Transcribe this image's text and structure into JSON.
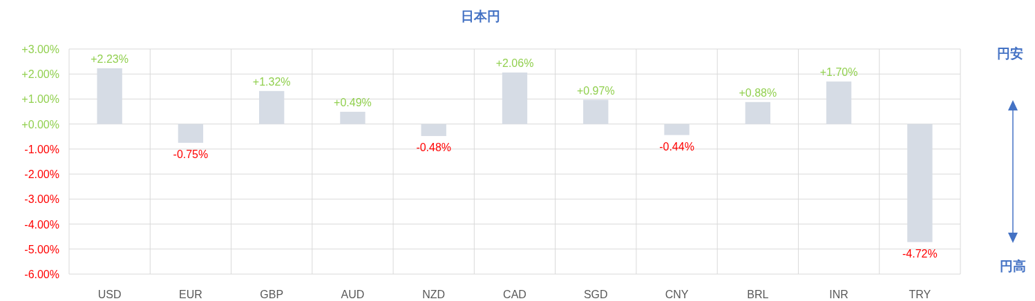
{
  "chart_data": {
    "type": "bar",
    "title": "日本円",
    "categories": [
      "USD",
      "EUR",
      "GBP",
      "AUD",
      "NZD",
      "CAD",
      "SGD",
      "CNY",
      "BRL",
      "INR",
      "TRY"
    ],
    "values": [
      2.23,
      -0.75,
      1.32,
      0.49,
      -0.48,
      2.06,
      0.97,
      -0.44,
      0.88,
      1.7,
      -4.72
    ],
    "value_labels": [
      "+2.23%",
      "-0.75%",
      "+1.32%",
      "+0.49%",
      "-0.48%",
      "+2.06%",
      "+0.97%",
      "-0.44%",
      "+0.88%",
      "+1.70%",
      "-4.72%"
    ],
    "color": "#d6dce5",
    "ylim": [
      -6,
      3
    ],
    "yticks": [
      {
        "value": 3,
        "label": "+3.00%"
      },
      {
        "value": 2,
        "label": "+2.00%"
      },
      {
        "value": 1,
        "label": "+1.00%"
      },
      {
        "value": 0,
        "label": "+0.00%"
      },
      {
        "value": -1,
        "label": "-1.00%"
      },
      {
        "value": -2,
        "label": "-2.00%"
      },
      {
        "value": -3,
        "label": "-3.00%"
      },
      {
        "value": -4,
        "label": "-4.00%"
      },
      {
        "value": -5,
        "label": "-5.00%"
      },
      {
        "value": -6,
        "label": "-6.00%"
      }
    ],
    "grid": true,
    "annotations": [
      "円安",
      "円高"
    ]
  }
}
